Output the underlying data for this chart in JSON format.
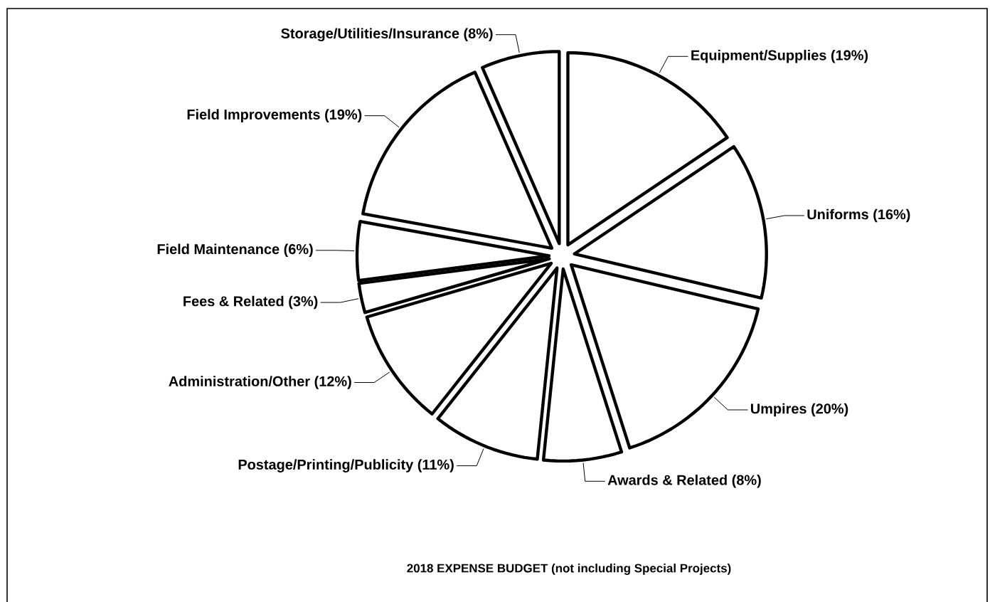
{
  "chart_data": {
    "type": "pie",
    "title": "2018 EXPENSE BUDGET (not including Special Projects)",
    "categories": [
      "Equipment/Supplies",
      "Uniforms",
      "Umpires",
      "Awards & Related",
      "Postage/Printing/Publicity",
      "Administration/Other",
      "Fees & Related",
      "Field Maintenance",
      "Field Improvements",
      "Storage/Utilities/Insurance"
    ],
    "values": [
      19,
      16,
      20,
      8,
      11,
      12,
      3,
      6,
      19,
      8
    ],
    "value_labels": [
      "(19%)",
      "(16%)",
      "(20%)",
      "(8%)",
      "(11%)",
      "(12%)",
      "(3%)",
      "(6%)",
      "(19%)",
      "(8%)"
    ],
    "colors": [
      "#ffffff",
      "#ffffff",
      "#ffffff",
      "#ffffff",
      "#ffffff",
      "#ffffff",
      "#ffffff",
      "#ffffff",
      "#ffffff",
      "#ffffff"
    ]
  }
}
